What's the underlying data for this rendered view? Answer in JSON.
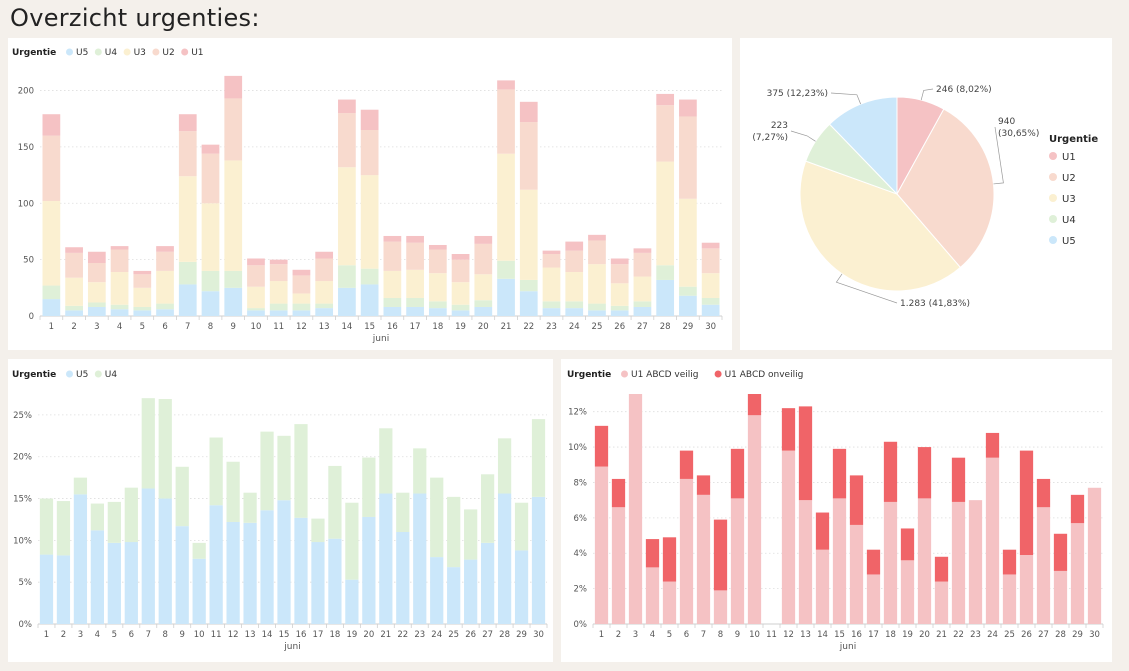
{
  "page_title": "Overzicht urgenties:",
  "colors": {
    "U1": "#f5c2c4",
    "U2": "#f8dace",
    "U3": "#fbf0d1",
    "U4": "#dff0d8",
    "U5": "#cbe7fa",
    "veilig": "#f5c2c4",
    "onveilig": "#f06468"
  },
  "chart_data": [
    {
      "type": "bar",
      "stacked": true,
      "legend_title": "Urgentie",
      "legend_position": "top-left",
      "xlabel": "juni",
      "categories": [
        "1",
        "2",
        "3",
        "4",
        "5",
        "6",
        "7",
        "8",
        "9",
        "10",
        "11",
        "12",
        "13",
        "14",
        "15",
        "16",
        "17",
        "18",
        "19",
        "20",
        "21",
        "22",
        "23",
        "24",
        "25",
        "26",
        "27",
        "28",
        "29",
        "30"
      ],
      "ylim": [
        0,
        220
      ],
      "yticks": [
        0,
        50,
        100,
        150,
        200
      ],
      "ytick_labels": [
        "0",
        "50",
        "100",
        "150",
        "200"
      ],
      "grid": true,
      "series": [
        {
          "name": "U5",
          "values": [
            15,
            5,
            8,
            6,
            5,
            6,
            28,
            22,
            25,
            5,
            5,
            5,
            7,
            25,
            28,
            8,
            8,
            7,
            5,
            8,
            33,
            22,
            7,
            7,
            5,
            5,
            8,
            32,
            18,
            10
          ]
        },
        {
          "name": "U4",
          "values": [
            12,
            4,
            4,
            4,
            3,
            5,
            20,
            18,
            15,
            2,
            6,
            6,
            4,
            20,
            14,
            8,
            8,
            6,
            5,
            6,
            16,
            10,
            6,
            6,
            6,
            4,
            5,
            13,
            8,
            6
          ]
        },
        {
          "name": "U3",
          "values": [
            75,
            25,
            18,
            29,
            17,
            29,
            76,
            60,
            98,
            19,
            20,
            9,
            20,
            87,
            83,
            24,
            25,
            25,
            20,
            23,
            95,
            80,
            30,
            26,
            35,
            20,
            22,
            92,
            78,
            22
          ]
        },
        {
          "name": "U2",
          "values": [
            58,
            22,
            17,
            20,
            12,
            17,
            40,
            44,
            55,
            19,
            15,
            16,
            20,
            48,
            40,
            26,
            24,
            21,
            20,
            27,
            57,
            60,
            12,
            19,
            21,
            17,
            21,
            50,
            73,
            22
          ]
        },
        {
          "name": "U1",
          "values": [
            19,
            5,
            10,
            3,
            3,
            5,
            15,
            8,
            20,
            6,
            4,
            5,
            6,
            12,
            18,
            5,
            6,
            4,
            5,
            7,
            8,
            18,
            3,
            8,
            5,
            5,
            4,
            10,
            15,
            5
          ]
        }
      ]
    },
    {
      "type": "pie",
      "legend_title": "Urgentie",
      "legend_position": "right",
      "slices": [
        {
          "name": "U1",
          "value": 246,
          "label": "246 (8,02%)"
        },
        {
          "name": "U2",
          "value": 940,
          "label": "940 (30,65%)"
        },
        {
          "name": "U3",
          "value": 1283,
          "label": "1.283 (41,83%)"
        },
        {
          "name": "U4",
          "value": 223,
          "label": "223 (7,27%)"
        },
        {
          "name": "U5",
          "value": 375,
          "label": "375 (12,23%)"
        }
      ],
      "legend_order": [
        "U1",
        "U2",
        "U3",
        "U4",
        "U5"
      ]
    },
    {
      "type": "bar",
      "stacked": true,
      "legend_title": "Urgentie",
      "legend_position": "top-left",
      "xlabel": "juni",
      "categories": [
        "1",
        "2",
        "3",
        "4",
        "5",
        "6",
        "7",
        "8",
        "9",
        "10",
        "11",
        "12",
        "13",
        "14",
        "15",
        "16",
        "17",
        "18",
        "19",
        "20",
        "21",
        "22",
        "23",
        "24",
        "25",
        "26",
        "27",
        "28",
        "29",
        "30"
      ],
      "ylim": [
        0,
        0.275
      ],
      "yticks": [
        0,
        0.05,
        0.1,
        0.15,
        0.2,
        0.25
      ],
      "ytick_labels": [
        "0%",
        "5%",
        "10%",
        "15%",
        "20%",
        "25%"
      ],
      "grid": true,
      "series": [
        {
          "name": "U5",
          "values": [
            0.083,
            0.082,
            0.155,
            0.112,
            0.097,
            0.098,
            0.162,
            0.15,
            0.117,
            0.078,
            0.142,
            0.122,
            0.121,
            0.136,
            0.148,
            0.127,
            0.098,
            0.102,
            0.053,
            0.128,
            0.156,
            0.11,
            0.156,
            0.08,
            0.068,
            0.077,
            0.097,
            0.156,
            0.088,
            0.152
          ]
        },
        {
          "name": "U4",
          "values": [
            0.067,
            0.065,
            0.02,
            0.032,
            0.049,
            0.065,
            0.108,
            0.119,
            0.071,
            0.019,
            0.081,
            0.072,
            0.036,
            0.094,
            0.077,
            0.112,
            0.028,
            0.087,
            0.092,
            0.071,
            0.078,
            0.047,
            0.054,
            0.095,
            0.084,
            0.06,
            0.082,
            0.066,
            0.057,
            0.093
          ]
        }
      ]
    },
    {
      "type": "bar",
      "stacked": true,
      "legend_title": "Urgentie",
      "legend_position": "top-left",
      "xlabel": "juni",
      "categories": [
        "1",
        "2",
        "3",
        "4",
        "5",
        "6",
        "7",
        "8",
        "9",
        "10",
        "11",
        "12",
        "13",
        "14",
        "15",
        "16",
        "17",
        "18",
        "19",
        "20",
        "21",
        "22",
        "23",
        "24",
        "25",
        "26",
        "27",
        "28",
        "29",
        "30"
      ],
      "ylim": [
        0,
        0.13
      ],
      "yticks": [
        0,
        0.02,
        0.04,
        0.06,
        0.08,
        0.1,
        0.12
      ],
      "ytick_labels": [
        "0%",
        "2%",
        "4%",
        "6%",
        "8%",
        "10%",
        "12%"
      ],
      "grid": true,
      "series": [
        {
          "name": "U1 ABCD veilig",
          "values": [
            0.089,
            0.066,
            0.13,
            0.032,
            0.024,
            0.082,
            0.073,
            0.019,
            0.071,
            0.118,
            0,
            0.098,
            0.07,
            0.042,
            0.071,
            0.056,
            0.028,
            0.069,
            0.036,
            0.071,
            0.024,
            0.069,
            0.07,
            0.094,
            0.028,
            0.039,
            0.066,
            0.03,
            0.057,
            0.077
          ]
        },
        {
          "name": "U1 ABCD onveilig",
          "values": [
            0.023,
            0.016,
            0,
            0.016,
            0.025,
            0.016,
            0.011,
            0.04,
            0.028,
            0.012,
            0,
            0.024,
            0.053,
            0.021,
            0.028,
            0.028,
            0.014,
            0.034,
            0.018,
            0.029,
            0.014,
            0.025,
            0,
            0.014,
            0.014,
            0.059,
            0.016,
            0.021,
            0.016,
            0
          ]
        }
      ]
    }
  ]
}
